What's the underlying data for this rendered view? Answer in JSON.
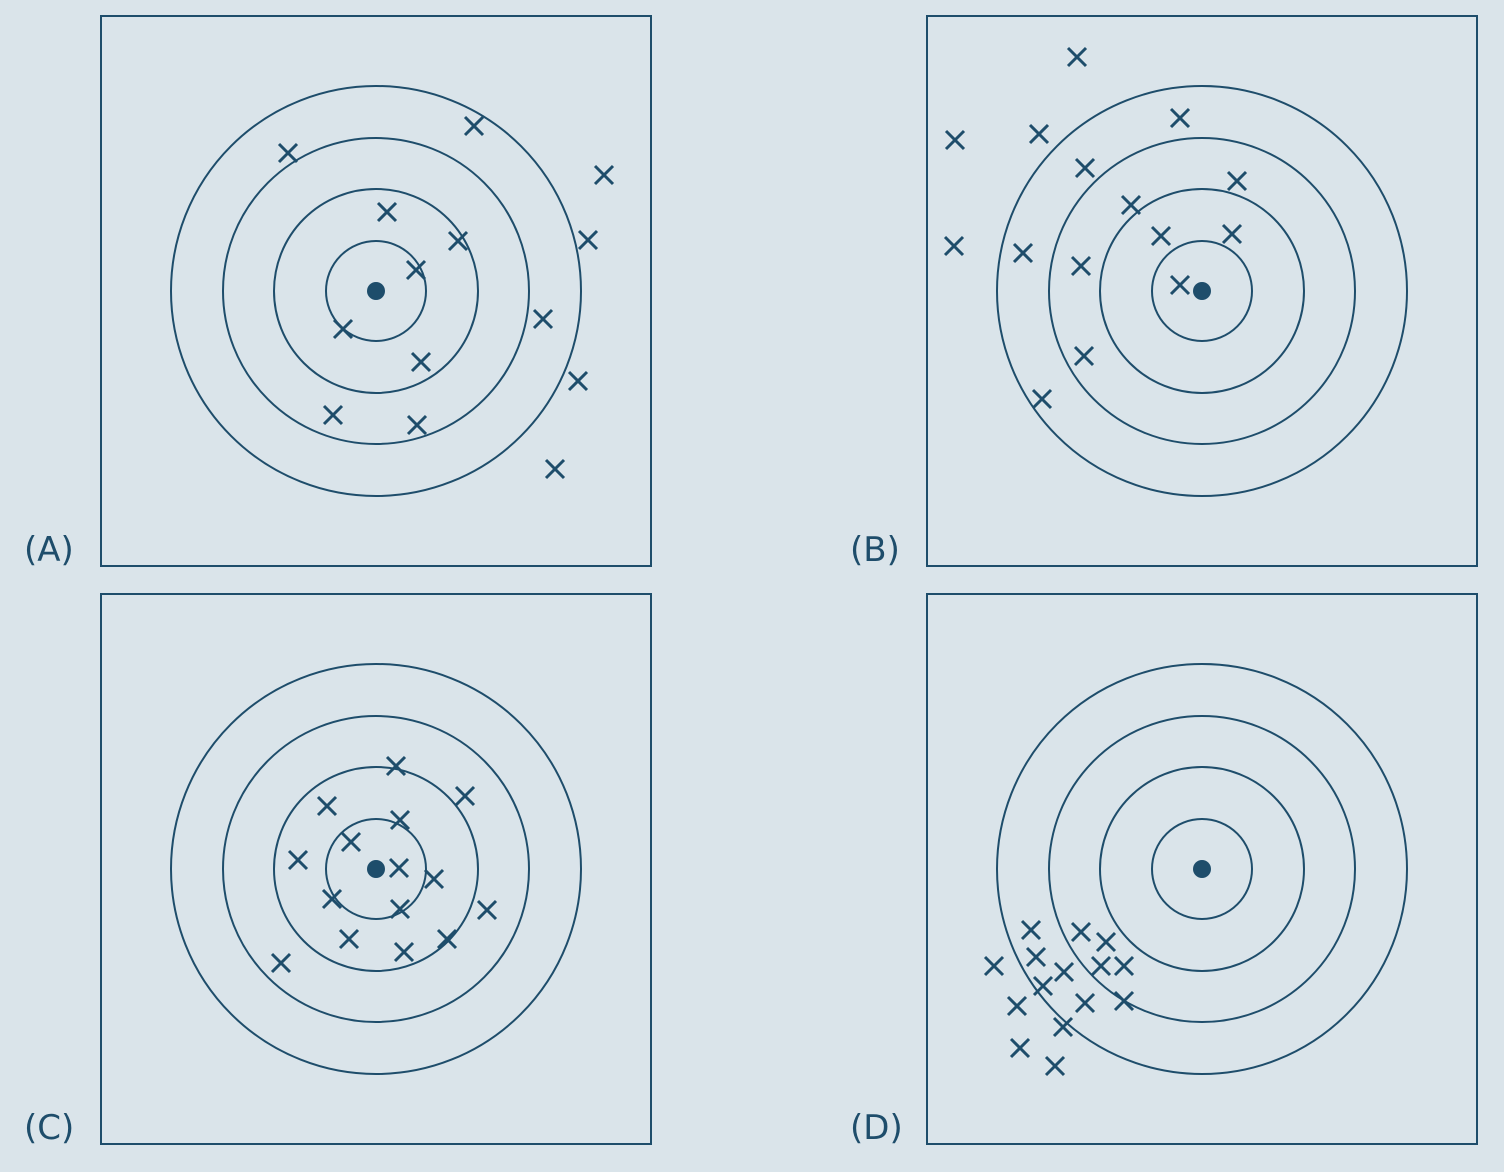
{
  "style": {
    "background": "#dae4ea",
    "stroke": "#1e4d6b"
  },
  "panels": [
    {
      "label": "(A)",
      "marks": [
        [
          188,
          138
        ],
        [
          374,
          111
        ],
        [
          504,
          160
        ],
        [
          287,
          197
        ],
        [
          358,
          226
        ],
        [
          488,
          225
        ],
        [
          316,
          255
        ],
        [
          243,
          314
        ],
        [
          443,
          304
        ],
        [
          561,
          300
        ],
        [
          321,
          347
        ],
        [
          478,
          366
        ],
        [
          233,
          400
        ],
        [
          317,
          410
        ],
        [
          455,
          454
        ]
      ]
    },
    {
      "label": "(B)",
      "marks": [
        [
          151,
          42
        ],
        [
          29,
          125
        ],
        [
          113,
          119
        ],
        [
          254,
          103
        ],
        [
          159,
          153
        ],
        [
          311,
          166
        ],
        [
          205,
          190
        ],
        [
          235,
          221
        ],
        [
          306,
          219
        ],
        [
          28,
          231
        ],
        [
          97,
          238
        ],
        [
          155,
          251
        ],
        [
          254,
          270
        ],
        [
          158,
          341
        ],
        [
          116,
          384
        ]
      ]
    },
    {
      "label": "(C)",
      "marks": [
        [
          296,
          173
        ],
        [
          227,
          213
        ],
        [
          365,
          203
        ],
        [
          300,
          227
        ],
        [
          251,
          249
        ],
        [
          198,
          267
        ],
        [
          299,
          275
        ],
        [
          334,
          286
        ],
        [
          232,
          306
        ],
        [
          300,
          316
        ],
        [
          387,
          317
        ],
        [
          249,
          346
        ],
        [
          304,
          359
        ],
        [
          347,
          346
        ],
        [
          181,
          370
        ]
      ]
    },
    {
      "label": "(D)",
      "marks": [
        [
          105,
          337
        ],
        [
          155,
          339
        ],
        [
          180,
          349
        ],
        [
          110,
          364
        ],
        [
          68,
          373
        ],
        [
          138,
          379
        ],
        [
          175,
          373
        ],
        [
          198,
          373
        ],
        [
          117,
          393
        ],
        [
          91,
          413
        ],
        [
          159,
          410
        ],
        [
          198,
          408
        ],
        [
          137,
          434
        ],
        [
          94,
          455
        ],
        [
          129,
          473
        ]
      ]
    }
  ]
}
